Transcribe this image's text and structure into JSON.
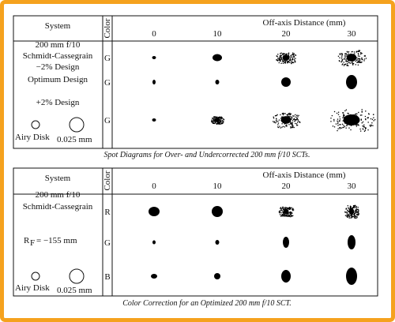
{
  "figures": [
    {
      "header": {
        "system": "System",
        "color": "Color",
        "offaxis": "Off-axis Distance (mm)",
        "columns": [
          "0",
          "10",
          "20",
          "30"
        ]
      },
      "rows": [
        {
          "system": [
            "200 mm f/10",
            "Schmidt-Cassegrain",
            "−2% Design"
          ],
          "color": "G"
        },
        {
          "system": [
            "Optimum Design"
          ],
          "color": "G"
        },
        {
          "system": [
            "+2% Design"
          ],
          "color": "G"
        }
      ],
      "airy": {
        "label": "Airy Disk",
        "size": "0.025 mm"
      },
      "caption": "Spot Diagrams for Over- and Undercorrected 200 mm f/10 SCTs."
    },
    {
      "header": {
        "system": "System",
        "color": "Color",
        "offaxis": "Off-axis Distance (mm)",
        "columns": [
          "0",
          "10",
          "20",
          "30"
        ]
      },
      "rows": [
        {
          "system": [
            "200 mm f/10",
            "Schmidt-Cassegrain"
          ],
          "color": "R"
        },
        {
          "system": [
            "R",
            "F",
            "= −155 mm"
          ],
          "color": "G"
        },
        {
          "system": [],
          "color": "B"
        }
      ],
      "airy": {
        "label": "Airy Disk",
        "size": "0.025 mm"
      },
      "caption": "Color Correction for an Optimized 200 mm f/10 SCT."
    }
  ]
}
